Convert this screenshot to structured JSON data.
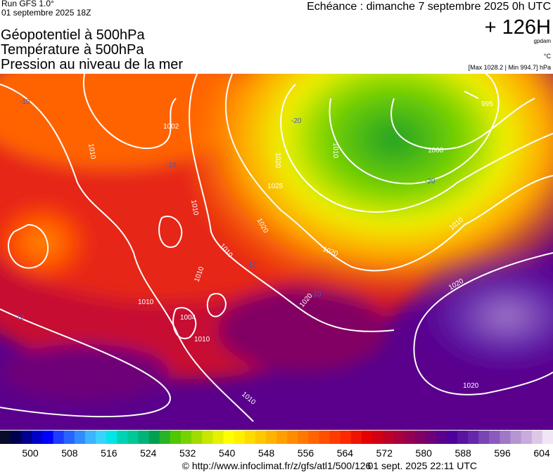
{
  "header": {
    "run": "Run GFS 1.0°",
    "date": "01 septembre 2025 18Z",
    "title_lines": [
      "Géopotentiel à 500hPa",
      "Température à 500hPa",
      "Pression au niveau de la mer"
    ],
    "forecast": "Echéance : dimanche 7 septembre 2025 0h UTC",
    "lead": "+ 126H",
    "unit": "gpdam",
    "temp_unit": "°C",
    "range": "[Max 1028.2 | Min 994.7] hPa"
  },
  "map": {
    "isobar_labels": [
      "1010",
      "1002",
      "1010",
      "1020",
      "1010",
      "1010",
      "1010",
      "1004",
      "1010",
      "1020",
      "1020",
      "1010",
      "1020",
      "1020",
      "1010",
      "1000",
      "995",
      "1010",
      "1020",
      "1025"
    ],
    "temperature_labels": [
      "-20",
      "-20",
      "-10",
      "-10",
      "-10",
      "-10",
      "-10"
    ]
  },
  "colorbar": {
    "colors": [
      "#0a0a2a",
      "#000050",
      "#00008c",
      "#0000c8",
      "#0000ff",
      "#1e3cff",
      "#2864ff",
      "#328cff",
      "#3cb4ff",
      "#3cd2ff",
      "#00e6e6",
      "#00d2b4",
      "#00c896",
      "#00b478",
      "#00a050",
      "#28b428",
      "#50c800",
      "#78d200",
      "#a0dc00",
      "#c8e600",
      "#e6f000",
      "#ffff00",
      "#fff000",
      "#ffdc00",
      "#ffc800",
      "#ffb400",
      "#ffa000",
      "#ff8c00",
      "#ff7800",
      "#ff6400",
      "#ff5000",
      "#ff3c00",
      "#ff2800",
      "#f01400",
      "#e60000",
      "#d20014",
      "#be0028",
      "#aa003c",
      "#960050",
      "#820064",
      "#6e0078",
      "#5a008c",
      "#50009a",
      "#5a14a0",
      "#6428aa",
      "#7846b4",
      "#8c5abe",
      "#a078c8",
      "#b496d2",
      "#c8aadc",
      "#dcc8e6",
      "#f0e6f5"
    ],
    "ticks": [
      500,
      508,
      516,
      524,
      532,
      540,
      548,
      556,
      564,
      572,
      580,
      588,
      596,
      604
    ]
  },
  "footer": {
    "url": "© http://www.infoclimat.fr/z/gfs/atl1/500/126",
    "timestamp": "01 sept. 2025 22:11 UTC"
  }
}
